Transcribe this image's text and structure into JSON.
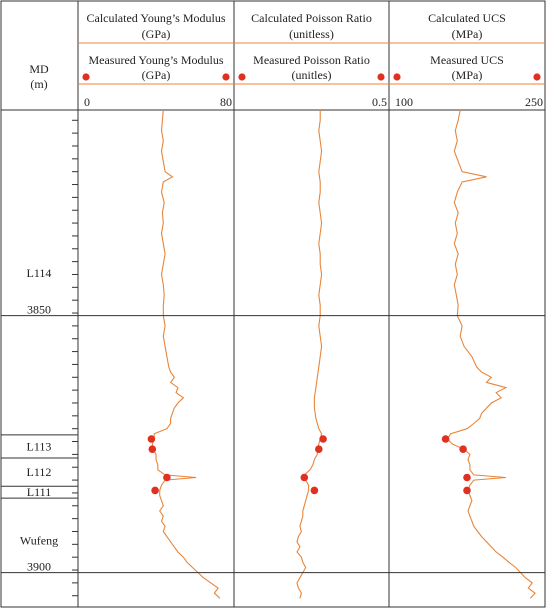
{
  "depth_label": "MD",
  "depth_unit": "(m)",
  "chart_data": {
    "type": "line",
    "y_axis": {
      "label": "MD (m)",
      "range": [
        3810,
        3905
      ],
      "ticks": [
        3850,
        3900
      ],
      "inverted": true
    },
    "formations": [
      {
        "name": "L114",
        "top": 3810,
        "bottom": 3873.2
      },
      {
        "name": "L113",
        "top": 3873.2,
        "bottom": 3877.7
      },
      {
        "name": "L112",
        "top": 3877.7,
        "bottom": 3883.2
      },
      {
        "name": "L111",
        "top": 3883.2,
        "bottom": 3885.5
      },
      {
        "name": "Wufeng",
        "top": 3885.5,
        "bottom": 3905
      }
    ],
    "tracks": [
      {
        "calc_title": [
          "Calculated Young’s Modulus",
          "(GPa)"
        ],
        "meas_title": [
          "Measured Young’s Modulus",
          "(GPa)"
        ],
        "min": 0,
        "max": 80,
        "min_label": "0",
        "max_label": "80",
        "calc_points": [
          [
            3810,
            44
          ],
          [
            3812,
            43.5
          ],
          [
            3814,
            43
          ],
          [
            3816,
            44
          ],
          [
            3818,
            43
          ],
          [
            3820,
            44
          ],
          [
            3822,
            45
          ],
          [
            3823,
            49
          ],
          [
            3824,
            44
          ],
          [
            3826,
            43
          ],
          [
            3828,
            44.5
          ],
          [
            3830,
            43.5
          ],
          [
            3832,
            44
          ],
          [
            3834,
            43
          ],
          [
            3836,
            44
          ],
          [
            3838,
            45
          ],
          [
            3840,
            44
          ],
          [
            3842,
            43
          ],
          [
            3844,
            44
          ],
          [
            3846,
            44.5
          ],
          [
            3848,
            44
          ],
          [
            3850,
            44
          ],
          [
            3852,
            45
          ],
          [
            3854,
            44
          ],
          [
            3856,
            45
          ],
          [
            3858,
            46
          ],
          [
            3860,
            47
          ],
          [
            3861,
            48
          ],
          [
            3862,
            50
          ],
          [
            3863,
            48
          ],
          [
            3864,
            52
          ],
          [
            3865,
            51
          ],
          [
            3866,
            55
          ],
          [
            3867,
            52
          ],
          [
            3868,
            50
          ],
          [
            3869,
            49
          ],
          [
            3870,
            48
          ],
          [
            3871,
            48
          ],
          [
            3872,
            46
          ],
          [
            3873,
            39
          ],
          [
            3874,
            39
          ],
          [
            3875,
            38
          ],
          [
            3876,
            38.5
          ],
          [
            3877,
            40
          ],
          [
            3878,
            40
          ],
          [
            3879,
            41
          ],
          [
            3880,
            41
          ],
          [
            3881,
            45
          ],
          [
            3881.5,
            62
          ],
          [
            3882,
            45
          ],
          [
            3883,
            43
          ],
          [
            3884,
            42
          ],
          [
            3885,
            42
          ],
          [
            3886,
            43
          ],
          [
            3887,
            44
          ],
          [
            3888,
            42
          ],
          [
            3889,
            44
          ],
          [
            3890,
            43
          ],
          [
            3891,
            45
          ],
          [
            3892,
            44
          ],
          [
            3893,
            46
          ],
          [
            3894,
            48
          ],
          [
            3895,
            50
          ],
          [
            3896,
            52
          ],
          [
            3897,
            55
          ],
          [
            3898,
            57
          ],
          [
            3899,
            60
          ],
          [
            3900,
            63
          ],
          [
            3901,
            66
          ],
          [
            3902,
            70
          ],
          [
            3903,
            74
          ],
          [
            3904,
            72
          ],
          [
            3905,
            75
          ]
        ],
        "meas_points": [
          [
            3874,
            37.5
          ],
          [
            3876,
            38
          ],
          [
            3881.5,
            46
          ],
          [
            3884,
            39.5
          ]
        ]
      },
      {
        "calc_title": [
          "Calculated Poisson Ratio",
          "(unitless)"
        ],
        "meas_title": [
          "Measured Poisson Ratio",
          "(unitles)"
        ],
        "min": 0,
        "max": 0.5,
        "min_label": "",
        "max_label": "0.5",
        "calc_points": [
          [
            3810,
            0.28
          ],
          [
            3812,
            0.28
          ],
          [
            3814,
            0.275
          ],
          [
            3816,
            0.28
          ],
          [
            3818,
            0.285
          ],
          [
            3820,
            0.28
          ],
          [
            3822,
            0.275
          ],
          [
            3824,
            0.28
          ],
          [
            3826,
            0.28
          ],
          [
            3828,
            0.275
          ],
          [
            3830,
            0.28
          ],
          [
            3832,
            0.285
          ],
          [
            3834,
            0.28
          ],
          [
            3836,
            0.275
          ],
          [
            3838,
            0.28
          ],
          [
            3840,
            0.28
          ],
          [
            3842,
            0.285
          ],
          [
            3844,
            0.28
          ],
          [
            3846,
            0.275
          ],
          [
            3848,
            0.28
          ],
          [
            3850,
            0.28
          ],
          [
            3852,
            0.275
          ],
          [
            3854,
            0.28
          ],
          [
            3856,
            0.285
          ],
          [
            3858,
            0.28
          ],
          [
            3860,
            0.275
          ],
          [
            3862,
            0.27
          ],
          [
            3864,
            0.265
          ],
          [
            3866,
            0.26
          ],
          [
            3868,
            0.26
          ],
          [
            3870,
            0.265
          ],
          [
            3872,
            0.275
          ],
          [
            3873,
            0.285
          ],
          [
            3874,
            0.28
          ],
          [
            3875,
            0.275
          ],
          [
            3876,
            0.27
          ],
          [
            3877,
            0.27
          ],
          [
            3878,
            0.26
          ],
          [
            3879,
            0.255
          ],
          [
            3880,
            0.245
          ],
          [
            3881,
            0.225
          ],
          [
            3882,
            0.23
          ],
          [
            3883,
            0.24
          ],
          [
            3884,
            0.24
          ],
          [
            3885,
            0.235
          ],
          [
            3886,
            0.23
          ],
          [
            3887,
            0.225
          ],
          [
            3888,
            0.22
          ],
          [
            3889,
            0.22
          ],
          [
            3890,
            0.215
          ],
          [
            3891,
            0.21
          ],
          [
            3892,
            0.215
          ],
          [
            3893,
            0.205
          ],
          [
            3894,
            0.2
          ],
          [
            3895,
            0.21
          ],
          [
            3896,
            0.2
          ],
          [
            3897,
            0.215
          ],
          [
            3898,
            0.22
          ],
          [
            3899,
            0.23
          ],
          [
            3900,
            0.22
          ],
          [
            3901,
            0.21
          ],
          [
            3902,
            0.2
          ],
          [
            3903,
            0.205
          ],
          [
            3904,
            0.215
          ],
          [
            3905,
            0.21
          ]
        ],
        "meas_points": [
          [
            3874,
            0.29
          ],
          [
            3876,
            0.275
          ],
          [
            3881.5,
            0.225
          ],
          [
            3884,
            0.26
          ]
        ]
      },
      {
        "calc_title": [
          "Calculated UCS",
          "(MPa)"
        ],
        "meas_title": [
          "Measured UCS",
          "(MPa)"
        ],
        "min": 100,
        "max": 250,
        "min_label": "100",
        "max_label": "250",
        "calc_points": [
          [
            3810,
            168
          ],
          [
            3812,
            166
          ],
          [
            3814,
            163
          ],
          [
            3816,
            165
          ],
          [
            3818,
            162
          ],
          [
            3820,
            166
          ],
          [
            3822,
            170
          ],
          [
            3823,
            195
          ],
          [
            3824,
            170
          ],
          [
            3826,
            165
          ],
          [
            3828,
            162
          ],
          [
            3830,
            166
          ],
          [
            3832,
            163
          ],
          [
            3834,
            165
          ],
          [
            3836,
            162
          ],
          [
            3838,
            166
          ],
          [
            3840,
            163
          ],
          [
            3842,
            165
          ],
          [
            3844,
            162
          ],
          [
            3846,
            164
          ],
          [
            3848,
            166
          ],
          [
            3850,
            165
          ],
          [
            3852,
            170
          ],
          [
            3854,
            168
          ],
          [
            3856,
            172
          ],
          [
            3858,
            180
          ],
          [
            3860,
            185
          ],
          [
            3861,
            190
          ],
          [
            3862,
            200
          ],
          [
            3863,
            195
          ],
          [
            3864,
            215
          ],
          [
            3865,
            205
          ],
          [
            3866,
            210
          ],
          [
            3867,
            200
          ],
          [
            3868,
            195
          ],
          [
            3869,
            190
          ],
          [
            3870,
            188
          ],
          [
            3871,
            182
          ],
          [
            3872,
            175
          ],
          [
            3873,
            158
          ],
          [
            3874,
            155
          ],
          [
            3875,
            160
          ],
          [
            3876,
            172
          ],
          [
            3877,
            178
          ],
          [
            3878,
            176
          ],
          [
            3879,
            178
          ],
          [
            3880,
            178
          ],
          [
            3881,
            182
          ],
          [
            3881.5,
            215
          ],
          [
            3882,
            182
          ],
          [
            3883,
            178
          ],
          [
            3884,
            176
          ],
          [
            3885,
            178
          ],
          [
            3886,
            180
          ],
          [
            3887,
            178
          ],
          [
            3888,
            176
          ],
          [
            3889,
            178
          ],
          [
            3890,
            180
          ],
          [
            3891,
            182
          ],
          [
            3892,
            186
          ],
          [
            3893,
            190
          ],
          [
            3894,
            195
          ],
          [
            3895,
            200
          ],
          [
            3896,
            205
          ],
          [
            3897,
            212
          ],
          [
            3898,
            218
          ],
          [
            3899,
            225
          ],
          [
            3900,
            230
          ],
          [
            3901,
            235
          ],
          [
            3902,
            242
          ],
          [
            3903,
            238
          ],
          [
            3904,
            245
          ],
          [
            3905,
            240
          ]
        ],
        "meas_points": [
          [
            3874,
            153
          ],
          [
            3876,
            171
          ],
          [
            3881.5,
            175
          ],
          [
            3884,
            175
          ]
        ]
      }
    ]
  }
}
